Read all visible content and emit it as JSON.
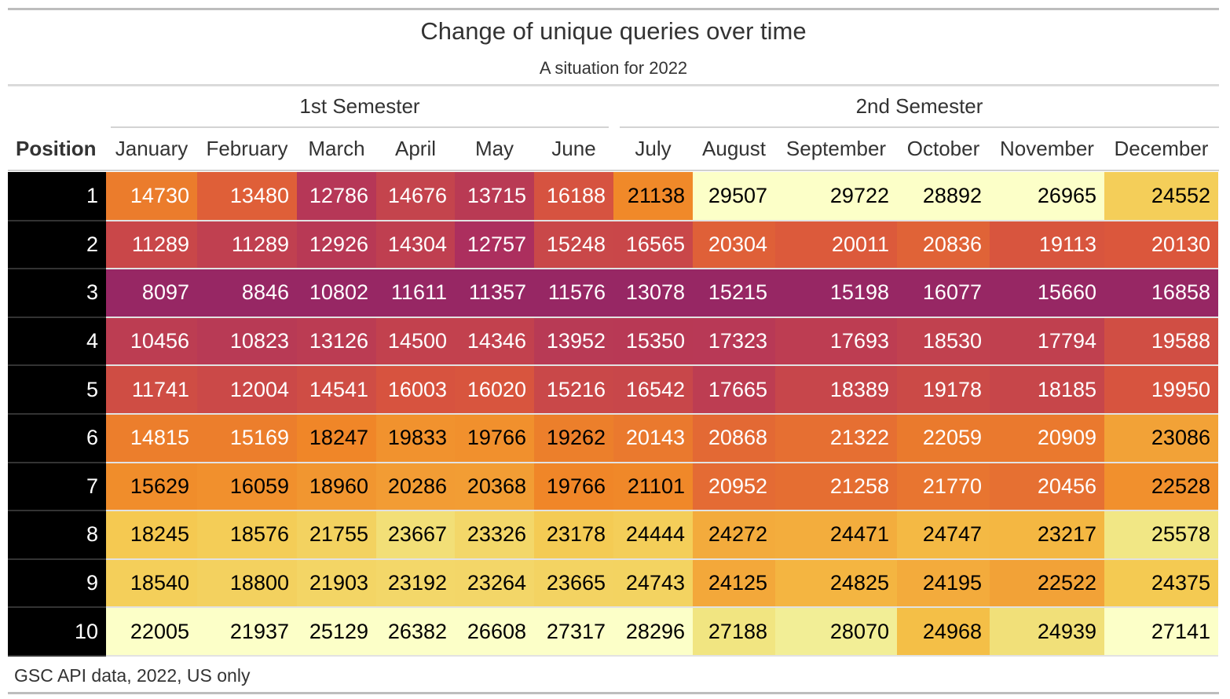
{
  "chart_data": {
    "type": "heatmap",
    "title": "Change of unique queries over time",
    "subtitle": "A situation for 2022",
    "source_note": "GSC API data, 2022, US only",
    "row_header": "Position",
    "spanners": [
      {
        "label": "1st Semester",
        "months": [
          "January",
          "February",
          "March",
          "April",
          "May",
          "June"
        ]
      },
      {
        "label": "2nd Semester",
        "months": [
          "July",
          "August",
          "September",
          "October",
          "November",
          "December"
        ]
      }
    ],
    "columns": [
      "January",
      "February",
      "March",
      "April",
      "May",
      "June",
      "July",
      "August",
      "September",
      "October",
      "November",
      "December"
    ],
    "rows": [
      "1",
      "2",
      "3",
      "4",
      "5",
      "6",
      "7",
      "8",
      "9",
      "10"
    ],
    "values": [
      [
        14730,
        13480,
        12786,
        14676,
        13715,
        16188,
        21138,
        29507,
        29722,
        28892,
        26965,
        24552
      ],
      [
        11289,
        11289,
        12926,
        14304,
        12757,
        15248,
        16565,
        20304,
        20011,
        20836,
        19113,
        20130
      ],
      [
        8097,
        8846,
        10802,
        11611,
        11357,
        11576,
        13078,
        15215,
        15198,
        16077,
        15660,
        16858
      ],
      [
        10456,
        10823,
        13126,
        14500,
        14346,
        13952,
        15350,
        17323,
        17693,
        18530,
        17794,
        19588
      ],
      [
        11741,
        12004,
        14541,
        16003,
        16020,
        15216,
        16542,
        17665,
        18389,
        19178,
        18185,
        19950
      ],
      [
        14815,
        15169,
        18247,
        19833,
        19766,
        19262,
        20143,
        20868,
        21322,
        22059,
        20909,
        23086
      ],
      [
        15629,
        16059,
        18960,
        20286,
        20368,
        19766,
        21101,
        20952,
        21258,
        21770,
        20456,
        22528
      ],
      [
        18245,
        18576,
        21755,
        23667,
        23326,
        23178,
        24444,
        24272,
        24471,
        24747,
        23217,
        25578
      ],
      [
        18540,
        18800,
        21903,
        23192,
        23264,
        23665,
        24743,
        24125,
        24825,
        24195,
        22522,
        24375
      ],
      [
        22005,
        21937,
        25129,
        26382,
        26608,
        27317,
        28296,
        27188,
        28070,
        24968,
        24939,
        27141
      ]
    ],
    "color_scale": "inferno, scaled per column",
    "colors": {
      "position_column_bg": "#000000",
      "position_column_text": "#ffffff"
    }
  }
}
